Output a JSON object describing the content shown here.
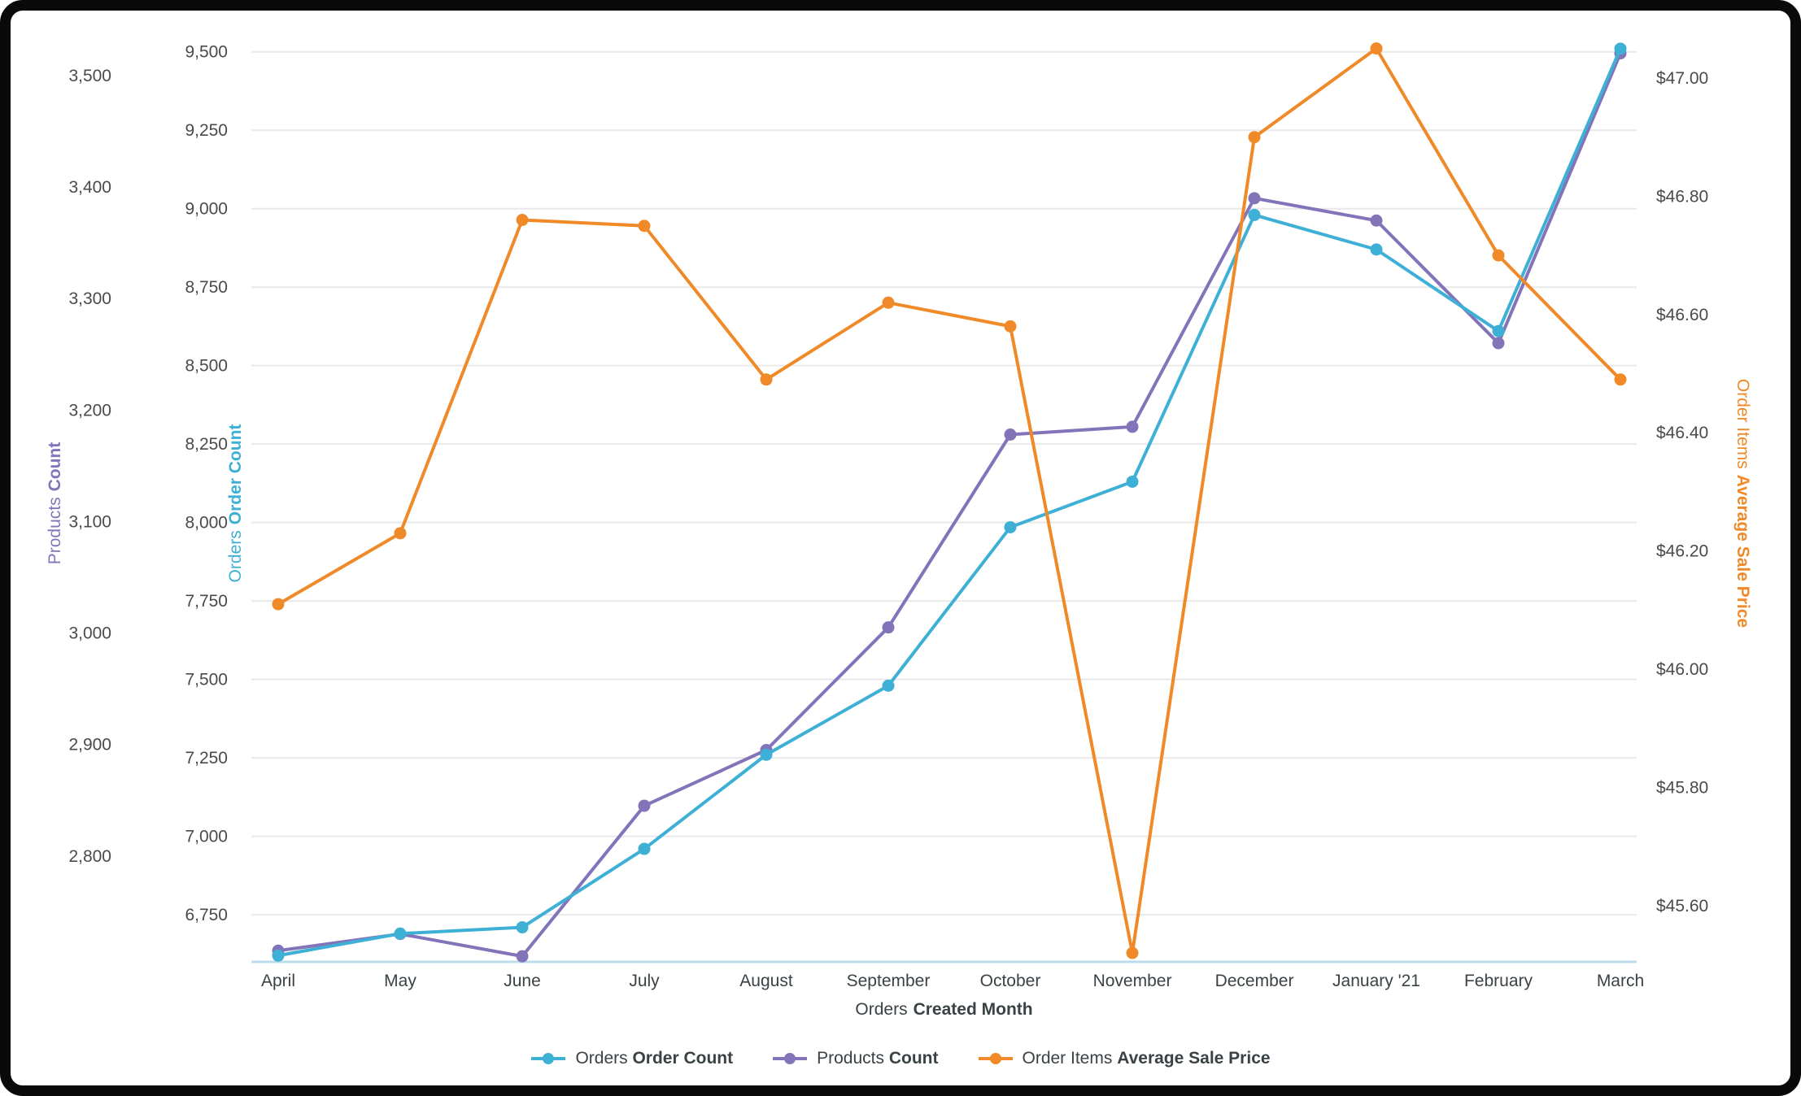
{
  "colors": {
    "background": "#ffffff",
    "frame": "#0a0a0a",
    "grid": "#e9e9e9",
    "axis_line": "#bcdcec",
    "tick_text": "#4a4a4a",
    "label_text": "#3a4245"
  },
  "chart_data": {
    "type": "line",
    "x_axis": {
      "title_prefix": "Orders",
      "title_bold": "Created Month",
      "categories": [
        "April",
        "May",
        "June",
        "July",
        "August",
        "September",
        "October",
        "November",
        "December",
        "January '21",
        "February",
        "March"
      ]
    },
    "axes": {
      "products": {
        "title_prefix": "Products",
        "title_bold": "Count",
        "color": "#8373B9",
        "min": 2705,
        "max": 3527,
        "ticks": [
          "3,500",
          "3,400",
          "3,300",
          "3,200",
          "3,100",
          "3,000",
          "2,900",
          "2,800"
        ],
        "tick_values": [
          3500,
          3400,
          3300,
          3200,
          3100,
          3000,
          2900,
          2800
        ]
      },
      "orders": {
        "title_prefix": "Orders",
        "title_bold": "Order Count",
        "color": "#3FB0D5",
        "min": 6600,
        "max": 9520,
        "ticks": [
          "9,500",
          "9,250",
          "9,000",
          "8,750",
          "8,500",
          "8,250",
          "8,000",
          "7,750",
          "7,500",
          "7,250",
          "7,000",
          "6,750"
        ],
        "tick_values": [
          9500,
          9250,
          9000,
          8750,
          8500,
          8250,
          8000,
          7750,
          7500,
          7250,
          7000,
          6750
        ]
      },
      "price": {
        "title_prefix": "Order Items",
        "title_bold": "Average Sale Price",
        "color": "#F08A28",
        "min": 45.505,
        "max": 47.055,
        "ticks": [
          "$47.00",
          "$46.80",
          "$46.60",
          "$46.40",
          "$46.20",
          "$46.00",
          "$45.80",
          "$45.60"
        ],
        "tick_values": [
          47.0,
          46.8,
          46.6,
          46.4,
          46.2,
          46.0,
          45.8,
          45.6
        ]
      }
    },
    "series": [
      {
        "id": "orders",
        "label_prefix": "Orders",
        "label_bold": "Order Count",
        "axis": "orders",
        "color": "#3FB0D5",
        "draw_order": 2,
        "values": [
          6620,
          6690,
          6710,
          6960,
          7260,
          7480,
          7985,
          8130,
          8980,
          8870,
          8610,
          9510
        ]
      },
      {
        "id": "products",
        "label_prefix": "Products",
        "label_bold": "Count",
        "axis": "products",
        "color": "#8373B9",
        "draw_order": 1,
        "values": [
          2715,
          2730,
          2710,
          2845,
          2895,
          3005,
          3178,
          3185,
          3390,
          3370,
          3260,
          3520
        ]
      },
      {
        "id": "price",
        "label_prefix": "Order Items",
        "label_bold": "Average Sale Price",
        "axis": "price",
        "color": "#F08A28",
        "draw_order": 3,
        "values": [
          46.11,
          46.23,
          46.76,
          46.75,
          46.49,
          46.62,
          46.58,
          45.52,
          46.9,
          47.05,
          46.7,
          46.49
        ]
      }
    ],
    "legend_order": [
      "orders",
      "products",
      "price"
    ]
  }
}
